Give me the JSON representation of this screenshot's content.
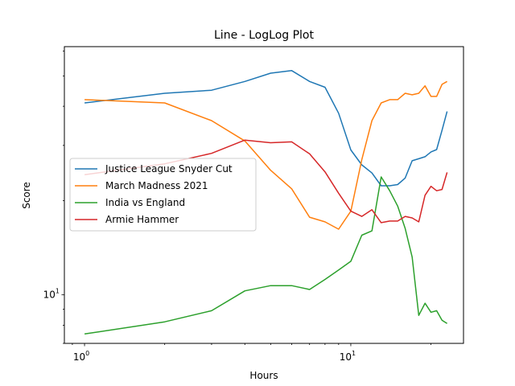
{
  "chart_data": {
    "type": "line",
    "scale": "loglog",
    "title": "Line - LogLog Plot",
    "xlabel": "Hours",
    "ylabel": "Score",
    "xlim": [
      0.84,
      26.5
    ],
    "ylim": [
      7.0,
      62
    ],
    "x_ticks": [
      {
        "value": 1,
        "base": "10",
        "exp": "0"
      },
      {
        "value": 10,
        "base": "10",
        "exp": "1"
      }
    ],
    "y_ticks": [
      {
        "value": 10,
        "base": "10",
        "exp": "1"
      }
    ],
    "legend_position": "center-left",
    "x": [
      0,
      1,
      2,
      3,
      4,
      5,
      6,
      7,
      8,
      9,
      10,
      11,
      12,
      13,
      14,
      15,
      16,
      17,
      18,
      19,
      20,
      21,
      22,
      23
    ],
    "series": [
      {
        "name": "Justice League Snyder Cut",
        "color": "#1f77b4",
        "values": [
          41,
          41,
          44,
          45,
          48,
          51,
          52,
          48,
          46,
          38,
          29,
          26,
          24.5,
          22.3,
          22.3,
          22.5,
          23.6,
          26.8,
          27.2,
          27.6,
          28.6,
          29.1,
          33.5,
          38.5
        ]
      },
      {
        "name": "March Madness 2021",
        "color": "#ff7f0e",
        "values": [
          42,
          42,
          41,
          36,
          31,
          25,
          21.8,
          17.7,
          17.1,
          16.2,
          18.5,
          27,
          36,
          41,
          42,
          42,
          44,
          43.5,
          44,
          46.5,
          43,
          43,
          47,
          48
        ]
      },
      {
        "name": "India vs England",
        "color": "#2ca02c",
        "values": [
          7.5,
          7.5,
          8.2,
          8.9,
          10.3,
          10.7,
          10.7,
          10.4,
          11.2,
          12.0,
          12.8,
          15.5,
          16.0,
          23.8,
          21.5,
          19.2,
          16.3,
          13.2,
          8.6,
          9.4,
          8.8,
          8.9,
          8.3,
          8.1
        ]
      },
      {
        "name": "Armie Hammer",
        "color": "#d62728",
        "values": [
          24.2,
          24.2,
          26.2,
          28.3,
          31.2,
          30.6,
          30.8,
          28.2,
          24.7,
          21.1,
          18.5,
          17.8,
          18.7,
          17.0,
          17.2,
          17.2,
          17.8,
          17.6,
          17.1,
          20.8,
          22.2,
          21.5,
          21.7,
          24.6
        ]
      }
    ]
  }
}
